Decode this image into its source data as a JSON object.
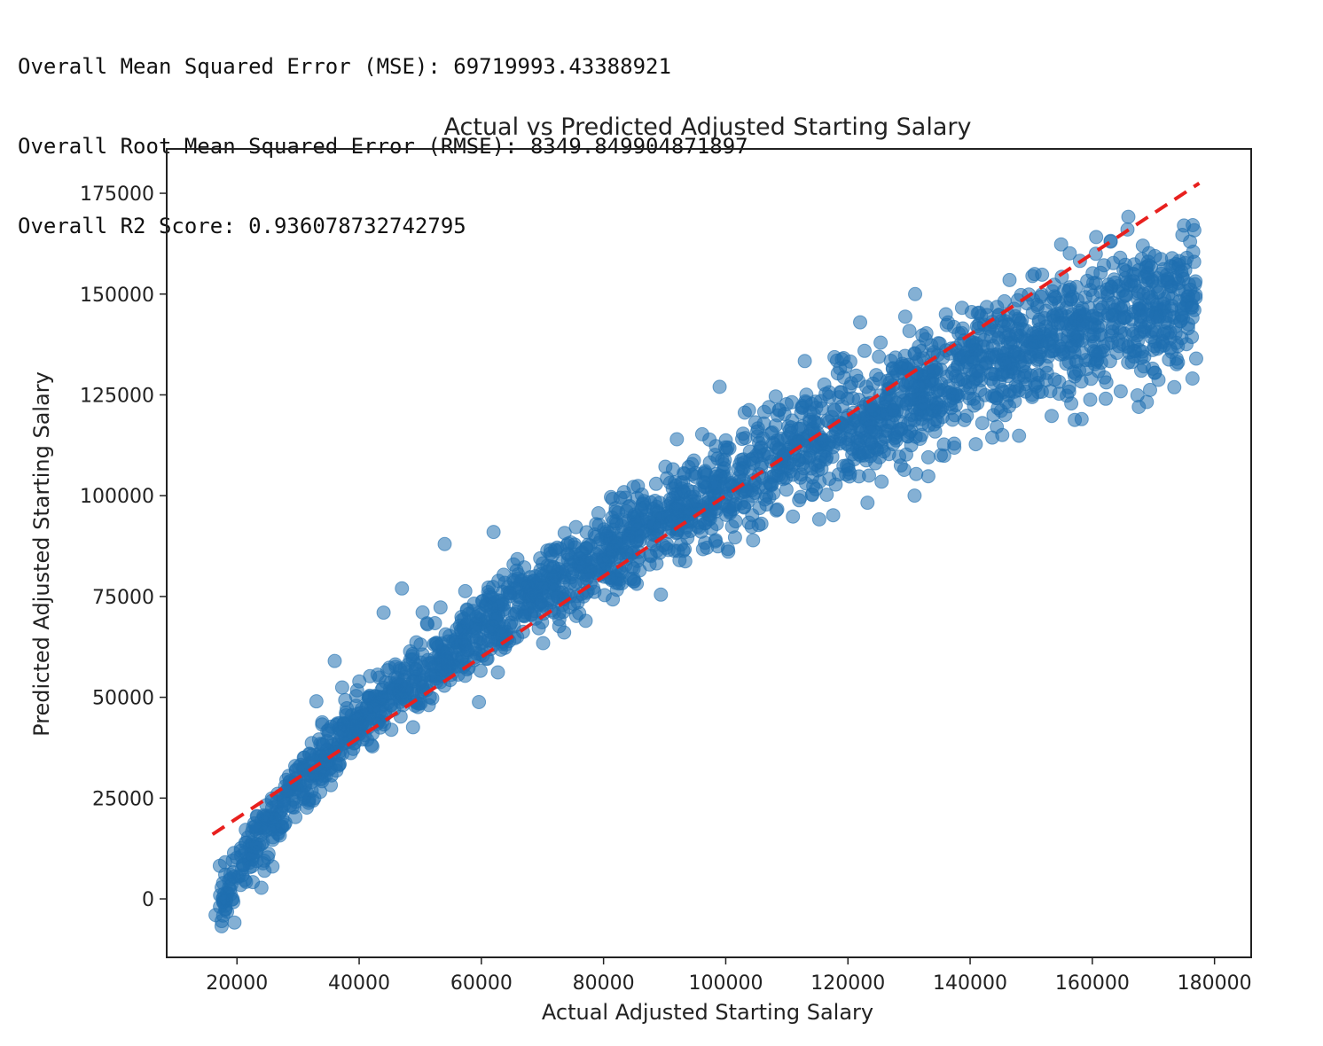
{
  "output": {
    "lines": [
      "Overall Mean Squared Error (MSE): 69719993.43388921",
      "Overall Root Mean Squared Error (RMSE): 8349.849904871897",
      "Overall R2 Score: 0.936078732742795"
    ]
  },
  "chart_data": {
    "type": "scatter",
    "title": "Actual vs Predicted Adjusted Starting Salary",
    "xlabel": "Actual Adjusted Starting Salary",
    "ylabel": "Predicted Adjusted Starting Salary",
    "xlim": [
      8500,
      186000
    ],
    "ylim": [
      -14500,
      186000
    ],
    "xticks": [
      20000,
      40000,
      60000,
      80000,
      100000,
      120000,
      140000,
      160000,
      180000
    ],
    "yticks": [
      0,
      25000,
      50000,
      75000,
      100000,
      125000,
      150000,
      175000
    ],
    "xtick_labels": [
      "20000",
      "40000",
      "60000",
      "80000",
      "100000",
      "120000",
      "140000",
      "160000",
      "180000"
    ],
    "ytick_labels": [
      "0",
      "25000",
      "50000",
      "75000",
      "100000",
      "125000",
      "150000",
      "175000"
    ],
    "grid": false,
    "series": [
      {
        "marker": "circle",
        "color": "#1f6fb0",
        "alpha": 0.55,
        "trend_points": [
          {
            "x": 17000,
            "y": -2000
          },
          {
            "x": 20000,
            "y": 8000
          },
          {
            "x": 25000,
            "y": 17000
          },
          {
            "x": 30000,
            "y": 28000
          },
          {
            "x": 40000,
            "y": 44000
          },
          {
            "x": 50000,
            "y": 56000
          },
          {
            "x": 60000,
            "y": 66000
          },
          {
            "x": 70000,
            "y": 76000
          },
          {
            "x": 80000,
            "y": 85000
          },
          {
            "x": 90000,
            "y": 94000
          },
          {
            "x": 100000,
            "y": 102000
          },
          {
            "x": 110000,
            "y": 110000
          },
          {
            "x": 120000,
            "y": 117000
          },
          {
            "x": 130000,
            "y": 124000
          },
          {
            "x": 140000,
            "y": 131000
          },
          {
            "x": 150000,
            "y": 137000
          },
          {
            "x": 160000,
            "y": 142000
          },
          {
            "x": 170000,
            "y": 146000
          },
          {
            "x": 177000,
            "y": 148000
          }
        ],
        "outliers": [
          {
            "x": 16500,
            "y": -4000
          },
          {
            "x": 17500,
            "y": -5500
          },
          {
            "x": 33000,
            "y": 49000
          },
          {
            "x": 36000,
            "y": 59000
          },
          {
            "x": 44000,
            "y": 71000
          },
          {
            "x": 47000,
            "y": 77000
          },
          {
            "x": 54000,
            "y": 88000
          },
          {
            "x": 62000,
            "y": 91000
          },
          {
            "x": 92000,
            "y": 114000
          },
          {
            "x": 99000,
            "y": 127000
          },
          {
            "x": 122000,
            "y": 143000
          },
          {
            "x": 131000,
            "y": 150000
          },
          {
            "x": 163000,
            "y": 163000
          },
          {
            "x": 175000,
            "y": 167000
          },
          {
            "x": 176000,
            "y": 163000
          },
          {
            "x": 177000,
            "y": 134000
          },
          {
            "x": 168000,
            "y": 131000
          }
        ]
      },
      {
        "name": "",
        "style": "dashed",
        "color": "#e8201e",
        "x": [
          16000,
          177500
        ],
        "y": [
          16000,
          177500
        ]
      }
    ]
  }
}
